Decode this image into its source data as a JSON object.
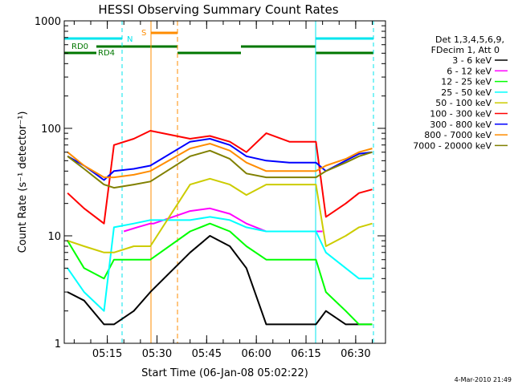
{
  "chart_data": {
    "type": "line",
    "title": "HESSI Observing Summary Count Rates",
    "xlabel": "Start Time (06-Jan-08 05:02:22)",
    "ylabel": "Count Rate (s⁻¹ detector⁻¹)",
    "y_scale": "log",
    "ylim": [
      1,
      1000
    ],
    "xlim": [
      "05:02",
      "06:39"
    ],
    "x_ticks": [
      "05:15",
      "05:30",
      "05:45",
      "06:00",
      "06:15",
      "06:30"
    ],
    "y_ticks": [
      "1",
      "10",
      "100",
      "1000"
    ],
    "footer_date": "4-Mar-2010 21:49",
    "legend_header": [
      "Det 1,3,4,5,6,9,",
      "FDecim 1, Att 0"
    ],
    "series": [
      {
        "name": "3 - 6 keV",
        "color": "#000000",
        "x": [
          "05:03",
          "05:08",
          "05:14",
          "05:17",
          "05:23",
          "05:28",
          "05:40",
          "05:46",
          "05:52",
          "05:57",
          "06:03",
          "06:10",
          "06:18",
          "06:21",
          "06:27",
          "06:31",
          "06:35"
        ],
        "values": [
          3,
          2.5,
          1.5,
          1.5,
          2,
          3,
          7,
          10,
          8,
          5,
          1.5,
          1.5,
          1.5,
          2,
          1.5,
          1.5,
          1.5
        ]
      },
      {
        "name": "6 - 12 keV",
        "color": "#ff00ff",
        "x": [
          "05:20",
          "05:24",
          "05:28",
          "05:29",
          "05:40",
          "05:46",
          "05:52",
          "05:57",
          "06:03",
          "06:10",
          "06:18",
          "06:20"
        ],
        "values": [
          11,
          12,
          13,
          13,
          17,
          18,
          16,
          13,
          11,
          11,
          11,
          11
        ]
      },
      {
        "name": "12 - 25 keV",
        "color": "#00ff00",
        "x": [
          "05:03",
          "05:08",
          "05:14",
          "05:17",
          "05:23",
          "05:28",
          "05:40",
          "05:46",
          "05:52",
          "05:57",
          "06:03",
          "06:10",
          "06:18",
          "06:21",
          "06:27",
          "06:31",
          "06:35"
        ],
        "values": [
          9,
          5,
          4,
          6,
          6,
          6,
          11,
          13,
          11,
          8,
          6,
          6,
          6,
          3,
          2,
          1.5,
          1.5
        ]
      },
      {
        "name": "25 - 50 keV",
        "color": "#00ffff",
        "x": [
          "05:03",
          "05:08",
          "05:14",
          "05:17",
          "05:23",
          "05:28",
          "05:40",
          "05:46",
          "05:52",
          "05:57",
          "06:03",
          "06:10",
          "06:18",
          "06:21",
          "06:27",
          "06:31",
          "06:35"
        ],
        "values": [
          5,
          3,
          2,
          12,
          13,
          14,
          14,
          15,
          14,
          12,
          11,
          11,
          11,
          7,
          5,
          4,
          4
        ]
      },
      {
        "name": "50 - 100 keV",
        "color": "#cccc00",
        "x": [
          "05:03",
          "05:08",
          "05:14",
          "05:17",
          "05:23",
          "05:28",
          "05:40",
          "05:46",
          "05:52",
          "05:57",
          "06:03",
          "06:10",
          "06:18",
          "06:21",
          "06:27",
          "06:31",
          "06:35"
        ],
        "values": [
          9,
          8,
          7,
          7,
          8,
          8,
          30,
          34,
          30,
          24,
          30,
          30,
          30,
          8,
          10,
          12,
          13
        ]
      },
      {
        "name": "100 - 300 keV",
        "color": "#ff0000",
        "x": [
          "05:03",
          "05:08",
          "05:14",
          "05:17",
          "05:23",
          "05:28",
          "05:40",
          "05:46",
          "05:52",
          "05:57",
          "06:03",
          "06:10",
          "06:18",
          "06:21",
          "06:27",
          "06:31",
          "06:35"
        ],
        "values": [
          25,
          18,
          13,
          70,
          80,
          95,
          80,
          85,
          75,
          60,
          90,
          75,
          75,
          15,
          20,
          25,
          27
        ]
      },
      {
        "name": "300 - 800 keV",
        "color": "#0000ff",
        "x": [
          "05:03",
          "05:08",
          "05:14",
          "05:17",
          "05:23",
          "05:28",
          "05:40",
          "05:46",
          "05:52",
          "05:57",
          "06:03",
          "06:10",
          "06:18",
          "06:21",
          "06:27",
          "06:31",
          "06:35"
        ],
        "values": [
          55,
          45,
          33,
          40,
          42,
          45,
          75,
          80,
          70,
          55,
          50,
          48,
          48,
          40,
          50,
          58,
          60
        ]
      },
      {
        "name": "800 - 7000 keV",
        "color": "#ff8c00",
        "x": [
          "05:03",
          "05:08",
          "05:14",
          "05:17",
          "05:23",
          "05:28",
          "05:40",
          "05:46",
          "05:52",
          "05:57",
          "06:03",
          "06:10",
          "06:18",
          "06:21",
          "06:27",
          "06:31",
          "06:35"
        ],
        "values": [
          60,
          45,
          35,
          35,
          37,
          40,
          65,
          72,
          62,
          48,
          40,
          40,
          40,
          45,
          52,
          60,
          65
        ]
      },
      {
        "name": "7000 - 20000 keV",
        "color": "#808000",
        "x": [
          "05:03",
          "05:08",
          "05:14",
          "05:17",
          "05:23",
          "05:28",
          "05:40",
          "05:46",
          "05:52",
          "05:57",
          "06:03",
          "06:10",
          "06:18",
          "06:21",
          "06:27",
          "06:31",
          "06:35"
        ],
        "values": [
          55,
          42,
          30,
          28,
          30,
          32,
          55,
          62,
          52,
          38,
          35,
          35,
          35,
          40,
          48,
          55,
          60
        ]
      }
    ],
    "flags": [
      {
        "label": "N",
        "color": "#00e5ee"
      },
      {
        "label": "S",
        "color": "#ff8c00"
      },
      {
        "label": "RD0",
        "color": "#007700"
      },
      {
        "label": "RD4",
        "color": "#007700"
      }
    ]
  }
}
